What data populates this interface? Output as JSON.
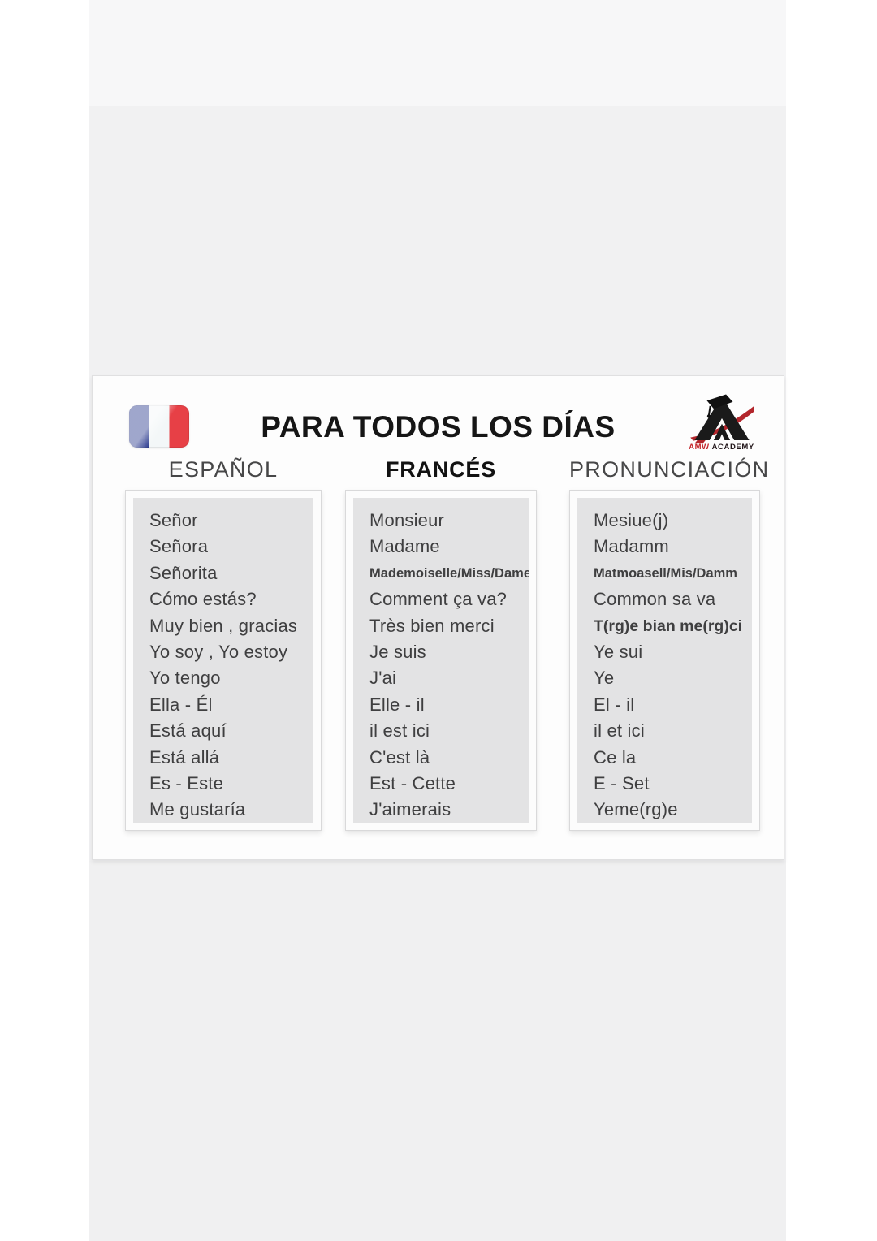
{
  "page": {
    "title": "PARA TODOS LOS DÍAS"
  },
  "brand": {
    "name": "AMW ACADEMY",
    "caption_amw": "AMW",
    "caption_academy": "ACADEMY"
  },
  "flag": {
    "meaning": "france-flag",
    "colors": {
      "blue": "#2b3b8f",
      "white": "#f3f7f8",
      "red": "#e74046"
    }
  },
  "columns": [
    {
      "id": "espanol",
      "header": "ESPAÑOL",
      "items": [
        {
          "text": "Señor"
        },
        {
          "text": "Señora"
        },
        {
          "text": "Señorita"
        },
        {
          "text": "Cómo estás?"
        },
        {
          "text": "Muy bien , gracias"
        },
        {
          "text": "Yo soy , Yo estoy"
        },
        {
          "text": "Yo tengo"
        },
        {
          "text": "Ella - Él"
        },
        {
          "text": "Está aquí"
        },
        {
          "text": "Está allá"
        },
        {
          "text": "Es - Este"
        },
        {
          "text": "Me gustaría"
        }
      ]
    },
    {
      "id": "frances",
      "header": "FRANCÉS",
      "items": [
        {
          "text": "Monsieur"
        },
        {
          "text": "Madame"
        },
        {
          "text": "Mademoiselle/Miss/Dame",
          "variant": "small"
        },
        {
          "text": "Comment ça va?"
        },
        {
          "text": "Très bien merci"
        },
        {
          "text": "Je suis"
        },
        {
          "text": "J'ai"
        },
        {
          "text": "Elle - il"
        },
        {
          "text": "il est ici"
        },
        {
          "text": "C'est là"
        },
        {
          "text": "Est - Cette"
        },
        {
          "text": "J'aimerais"
        }
      ]
    },
    {
      "id": "pronunciacion",
      "header": "PRONUNCIACIÓN",
      "items": [
        {
          "text": "Mesiue(j)"
        },
        {
          "text": "Madamm"
        },
        {
          "text": "Matmoasell/Mis/Damm",
          "variant": "small"
        },
        {
          "text": "Common sa va"
        },
        {
          "text": "T(rg)e bian me(rg)ci",
          "variant": "mid"
        },
        {
          "text": "Ye sui"
        },
        {
          "text": "Ye"
        },
        {
          "text": "El - il"
        },
        {
          "text": "il et ici"
        },
        {
          "text": "Ce la"
        },
        {
          "text": "E - Set"
        },
        {
          "text": "Yeme(rg)e"
        }
      ]
    }
  ],
  "colors": {
    "band_top": "#f7f7f8",
    "band_mid": "#f1f1f2",
    "band_bottom": "#f0f0f1",
    "card_bg": "#fdfdfd",
    "panel_bg": "#e3e3e4",
    "list_text": "#3f3f40",
    "header_text": "#474748",
    "frances_header_text": "#121212",
    "title_text": "#161616",
    "logo_red": "#c4262c",
    "logo_black": "#1a1a1a"
  }
}
